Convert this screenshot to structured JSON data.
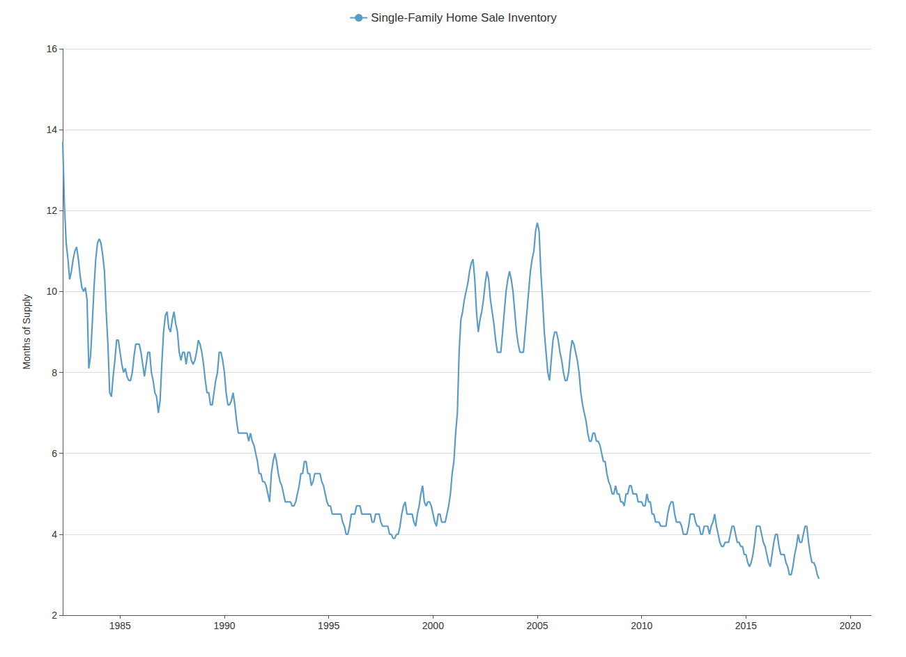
{
  "chart_data": {
    "type": "line",
    "ylabel": "Months of Supply",
    "xlim": [
      1982.25,
      2021.0
    ],
    "xticks": [
      1985,
      1990,
      1995,
      2000,
      2005,
      2010,
      2015,
      2020
    ],
    "ylim": [
      2,
      16
    ],
    "yticks": [
      2,
      4,
      6,
      8,
      10,
      12,
      14,
      16
    ],
    "grid": true,
    "legend": "top",
    "x": [
      1982.25,
      1982.333333,
      1982.416667,
      1982.5,
      1982.583333,
      1982.666667,
      1982.75,
      1982.833333,
      1982.916667,
      1983,
      1983.083333,
      1983.166667,
      1983.25,
      1983.333333,
      1983.416667,
      1983.5,
      1983.583333,
      1983.666667,
      1983.75,
      1983.833333,
      1983.916667,
      1984,
      1984.083333,
      1984.166667,
      1984.25,
      1984.333333,
      1984.416667,
      1984.5,
      1984.583333,
      1984.666667,
      1984.75,
      1984.833333,
      1984.916667,
      1985,
      1985.083333,
      1985.166667,
      1985.25,
      1985.333333,
      1985.416667,
      1985.5,
      1985.583333,
      1985.666667,
      1985.75,
      1985.833333,
      1985.916667,
      1986,
      1986.083333,
      1986.166667,
      1986.25,
      1986.333333,
      1986.416667,
      1986.5,
      1986.583333,
      1986.666667,
      1986.75,
      1986.833333,
      1986.916667,
      1987,
      1987.083333,
      1987.166667,
      1987.25,
      1987.333333,
      1987.416667,
      1987.5,
      1987.583333,
      1987.666667,
      1987.75,
      1987.833333,
      1987.916667,
      1988,
      1988.083333,
      1988.166667,
      1988.25,
      1988.333333,
      1988.416667,
      1988.5,
      1988.583333,
      1988.666667,
      1988.75,
      1988.833333,
      1988.916667,
      1989,
      1989.083333,
      1989.166667,
      1989.25,
      1989.333333,
      1989.416667,
      1989.5,
      1989.583333,
      1989.666667,
      1989.75,
      1989.833333,
      1989.916667,
      1990,
      1990.083333,
      1990.166667,
      1990.25,
      1990.333333,
      1990.416667,
      1990.5,
      1990.583333,
      1990.666667,
      1990.75,
      1990.833333,
      1990.916667,
      1991,
      1991.083333,
      1991.166667,
      1991.25,
      1991.333333,
      1991.416667,
      1991.5,
      1991.583333,
      1991.666667,
      1991.75,
      1991.833333,
      1991.916667,
      1992,
      1992.083333,
      1992.166667,
      1992.25,
      1992.333333,
      1992.416667,
      1992.5,
      1992.583333,
      1992.666667,
      1992.75,
      1992.833333,
      1992.916667,
      1993,
      1993.083333,
      1993.166667,
      1993.25,
      1993.333333,
      1993.416667,
      1993.5,
      1993.583333,
      1993.666667,
      1993.75,
      1993.833333,
      1993.916667,
      1994,
      1994.083333,
      1994.166667,
      1994.25,
      1994.333333,
      1994.416667,
      1994.5,
      1994.583333,
      1994.666667,
      1994.75,
      1994.833333,
      1994.916667,
      1995,
      1995.083333,
      1995.166667,
      1995.25,
      1995.333333,
      1995.416667,
      1995.5,
      1995.583333,
      1995.666667,
      1995.75,
      1995.833333,
      1995.916667,
      1996,
      1996.083333,
      1996.166667,
      1996.25,
      1996.333333,
      1996.416667,
      1996.5,
      1996.583333,
      1996.666667,
      1996.75,
      1996.833333,
      1996.916667,
      1997,
      1997.083333,
      1997.166667,
      1997.25,
      1997.333333,
      1997.416667,
      1997.5,
      1997.583333,
      1997.666667,
      1997.75,
      1997.833333,
      1997.916667,
      1998,
      1998.083333,
      1998.166667,
      1998.25,
      1998.333333,
      1998.416667,
      1998.5,
      1998.583333,
      1998.666667,
      1998.75,
      1998.833333,
      1998.916667,
      1999,
      1999.083333,
      1999.166667,
      1999.25,
      1999.333333,
      1999.416667,
      1999.5,
      1999.583333,
      1999.666667,
      1999.75,
      1999.833333,
      1999.916667,
      2000,
      2000.083333,
      2000.166667,
      2000.25,
      2000.333333,
      2000.416667,
      2000.5,
      2000.583333,
      2000.666667,
      2000.75,
      2000.833333,
      2000.916667,
      2001,
      2001.083333,
      2001.166667,
      2001.25,
      2001.333333,
      2001.416667,
      2001.5,
      2001.583333,
      2001.666667,
      2001.75,
      2001.833333,
      2001.916667,
      2002,
      2002.083333,
      2002.166667,
      2002.25,
      2002.333333,
      2002.416667,
      2002.5,
      2002.583333,
      2002.666667,
      2002.75,
      2002.833333,
      2002.916667,
      2003,
      2003.083333,
      2003.166667,
      2003.25,
      2003.333333,
      2003.416667,
      2003.5,
      2003.583333,
      2003.666667,
      2003.75,
      2003.833333,
      2003.916667,
      2004,
      2004.083333,
      2004.166667,
      2004.25,
      2004.333333,
      2004.416667,
      2004.5,
      2004.583333,
      2004.666667,
      2004.75,
      2004.833333,
      2004.916667,
      2005,
      2005.083333,
      2005.166667,
      2005.25,
      2005.333333,
      2005.416667,
      2005.5,
      2005.583333,
      2005.666667,
      2005.75,
      2005.833333,
      2005.916667,
      2006,
      2006.083333,
      2006.166667,
      2006.25,
      2006.333333,
      2006.416667,
      2006.5,
      2006.583333,
      2006.666667,
      2006.75,
      2006.833333,
      2006.916667,
      2007,
      2007.083333,
      2007.166667,
      2007.25,
      2007.333333,
      2007.416667,
      2007.5,
      2007.583333,
      2007.666667,
      2007.75,
      2007.833333,
      2007.916667,
      2008,
      2008.083333,
      2008.166667,
      2008.25,
      2008.333333,
      2008.416667,
      2008.5,
      2008.583333,
      2008.666667,
      2008.75,
      2008.833333,
      2008.916667,
      2009,
      2009.083333,
      2009.166667,
      2009.25,
      2009.333333,
      2009.416667,
      2009.5,
      2009.583333,
      2009.666667,
      2009.75,
      2009.833333,
      2009.916667,
      2010,
      2010.083333,
      2010.166667,
      2010.25,
      2010.333333,
      2010.416667,
      2010.5,
      2010.583333,
      2010.666667,
      2010.75,
      2010.833333,
      2010.916667,
      2011,
      2011.083333,
      2011.166667,
      2011.25,
      2011.333333,
      2011.416667,
      2011.5,
      2011.583333,
      2011.666667,
      2011.75,
      2011.833333,
      2011.916667,
      2012,
      2012.083333,
      2012.166667,
      2012.25,
      2012.333333,
      2012.416667,
      2012.5,
      2012.583333,
      2012.666667,
      2012.75,
      2012.833333,
      2012.916667,
      2013,
      2013.083333,
      2013.166667,
      2013.25,
      2013.333333,
      2013.416667,
      2013.5,
      2013.583333,
      2013.666667,
      2013.75,
      2013.833333,
      2013.916667,
      2014,
      2014.083333,
      2014.166667,
      2014.25,
      2014.333333,
      2014.416667,
      2014.5,
      2014.583333,
      2014.666667,
      2014.75,
      2014.833333,
      2014.916667,
      2015,
      2015.083333,
      2015.166667,
      2015.25,
      2015.333333,
      2015.416667,
      2015.5,
      2015.583333,
      2015.666667,
      2015.75,
      2015.833333,
      2015.916667,
      2016,
      2016.083333,
      2016.166667,
      2016.25,
      2016.333333,
      2016.416667,
      2016.5,
      2016.583333,
      2016.666667,
      2016.75,
      2016.833333,
      2016.916667,
      2017,
      2017.083333,
      2017.166667,
      2017.25,
      2017.333333,
      2017.416667,
      2017.5,
      2017.583333,
      2017.666667,
      2017.75,
      2017.833333,
      2017.916667,
      2018,
      2018.083333,
      2018.166667,
      2018.25,
      2018.333333,
      2018.416667,
      2018.5
    ],
    "series": [
      {
        "name": "Single-Family Home Sale Inventory",
        "color": "#5b9cc4",
        "values": [
          13.7,
          12.1,
          11.2,
          10.8,
          10.3,
          10.5,
          10.8,
          11.0,
          11.1,
          10.8,
          10.4,
          10.1,
          10.0,
          10.1,
          9.8,
          8.1,
          8.4,
          9.2,
          10.1,
          10.8,
          11.2,
          11.3,
          11.2,
          10.9,
          10.5,
          9.5,
          8.7,
          7.5,
          7.4,
          7.9,
          8.3,
          8.8,
          8.8,
          8.5,
          8.2,
          8.0,
          8.1,
          7.9,
          7.8,
          7.8,
          8.0,
          8.4,
          8.7,
          8.7,
          8.7,
          8.5,
          8.2,
          7.9,
          8.2,
          8.5,
          8.5,
          8.0,
          7.8,
          7.5,
          7.4,
          7.0,
          7.3,
          8.2,
          9.0,
          9.4,
          9.5,
          9.1,
          9.0,
          9.3,
          9.5,
          9.2,
          9.0,
          8.5,
          8.3,
          8.5,
          8.5,
          8.2,
          8.5,
          8.5,
          8.3,
          8.2,
          8.3,
          8.5,
          8.8,
          8.7,
          8.5,
          8.2,
          7.8,
          7.5,
          7.5,
          7.2,
          7.2,
          7.5,
          7.8,
          8.0,
          8.5,
          8.5,
          8.3,
          8.0,
          7.5,
          7.2,
          7.2,
          7.3,
          7.5,
          7.2,
          6.8,
          6.5,
          6.5,
          6.5,
          6.5,
          6.5,
          6.5,
          6.3,
          6.5,
          6.3,
          6.2,
          6.0,
          5.8,
          5.5,
          5.5,
          5.3,
          5.3,
          5.2,
          5.0,
          4.8,
          5.5,
          5.8,
          6.0,
          5.8,
          5.5,
          5.3,
          5.2,
          5.0,
          4.8,
          4.8,
          4.8,
          4.8,
          4.7,
          4.7,
          4.8,
          5.0,
          5.2,
          5.5,
          5.5,
          5.8,
          5.8,
          5.5,
          5.5,
          5.2,
          5.3,
          5.5,
          5.5,
          5.5,
          5.5,
          5.3,
          5.2,
          5.0,
          4.8,
          4.7,
          4.7,
          4.5,
          4.5,
          4.5,
          4.5,
          4.5,
          4.5,
          4.3,
          4.2,
          4.0,
          4.0,
          4.2,
          4.5,
          4.5,
          4.5,
          4.7,
          4.7,
          4.7,
          4.5,
          4.5,
          4.5,
          4.5,
          4.5,
          4.5,
          4.3,
          4.3,
          4.5,
          4.5,
          4.5,
          4.3,
          4.2,
          4.2,
          4.2,
          4.2,
          4.0,
          4.0,
          3.9,
          3.9,
          4.0,
          4.0,
          4.2,
          4.5,
          4.7,
          4.8,
          4.5,
          4.5,
          4.5,
          4.5,
          4.3,
          4.2,
          4.5,
          4.7,
          5.0,
          5.2,
          4.8,
          4.7,
          4.8,
          4.8,
          4.7,
          4.5,
          4.3,
          4.2,
          4.5,
          4.5,
          4.3,
          4.3,
          4.3,
          4.5,
          4.7,
          5.0,
          5.5,
          5.8,
          6.5,
          7.0,
          8.5,
          9.3,
          9.5,
          9.8,
          10.0,
          10.2,
          10.5,
          10.7,
          10.8,
          10.3,
          9.5,
          9.0,
          9.3,
          9.5,
          9.8,
          10.2,
          10.5,
          10.3,
          9.8,
          9.5,
          9.2,
          8.8,
          8.5,
          8.5,
          8.5,
          9.0,
          9.5,
          10.0,
          10.3,
          10.5,
          10.3,
          10.0,
          9.5,
          9.0,
          8.7,
          8.5,
          8.5,
          8.5,
          9.0,
          9.5,
          10.0,
          10.5,
          10.8,
          11.0,
          11.5,
          11.7,
          11.5,
          10.5,
          9.8,
          9.0,
          8.5,
          8.0,
          7.8,
          8.3,
          8.8,
          9.0,
          9.0,
          8.8,
          8.5,
          8.3,
          8.0,
          7.8,
          7.8,
          8.0,
          8.5,
          8.8,
          8.7,
          8.5,
          8.3,
          8.0,
          7.5,
          7.2,
          7.0,
          6.8,
          6.5,
          6.3,
          6.3,
          6.5,
          6.5,
          6.3,
          6.3,
          6.2,
          6.0,
          5.8,
          5.8,
          5.5,
          5.3,
          5.2,
          5.0,
          5.0,
          5.2,
          5.0,
          5.0,
          4.8,
          4.8,
          4.7,
          5.0,
          5.0,
          5.2,
          5.2,
          5.0,
          5.0,
          5.0,
          4.8,
          4.8,
          4.8,
          4.7,
          4.7,
          5.0,
          4.8,
          4.8,
          4.5,
          4.5,
          4.3,
          4.3,
          4.3,
          4.2,
          4.2,
          4.2,
          4.2,
          4.5,
          4.7,
          4.8,
          4.8,
          4.5,
          4.3,
          4.3,
          4.3,
          4.2,
          4.0,
          4.0,
          4.0,
          4.2,
          4.5,
          4.5,
          4.5,
          4.3,
          4.2,
          4.2,
          4.0,
          4.0,
          4.2,
          4.2,
          4.2,
          4.0,
          4.2,
          4.3,
          4.5,
          4.2,
          4.0,
          3.8,
          3.7,
          3.7,
          3.8,
          3.8,
          3.8,
          4.0,
          4.2,
          4.2,
          4.0,
          3.8,
          3.8,
          3.7,
          3.7,
          3.5,
          3.5,
          3.3,
          3.2,
          3.3,
          3.5,
          3.8,
          4.2,
          4.2,
          4.2,
          4.0,
          3.8,
          3.7,
          3.5,
          3.3,
          3.2,
          3.5,
          3.8,
          4.0,
          4.0,
          3.7,
          3.5,
          3.5,
          3.5,
          3.3,
          3.2,
          3.0,
          3.0,
          3.2,
          3.5,
          3.7,
          4.0,
          3.8,
          3.8,
          4.0,
          4.2,
          4.2,
          3.8,
          3.5,
          3.3,
          3.3,
          3.2,
          3.0,
          2.9
        ]
      }
    ]
  }
}
